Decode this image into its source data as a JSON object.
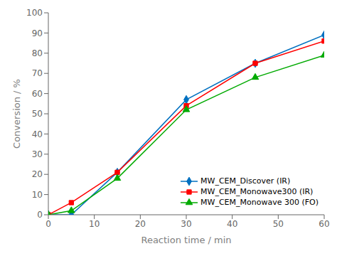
{
  "chart_data": {
    "type": "line",
    "x_label": "Reaction time / min",
    "y_label": "Conversion / %",
    "x": [
      0,
      5,
      15,
      30,
      45,
      60
    ],
    "series": [
      {
        "name": "MW_CEM_Discover (IR)",
        "color": "#0070c0",
        "marker": "diamond",
        "values": [
          0,
          0,
          21,
          57,
          75,
          89
        ]
      },
      {
        "name": "MW_CEM_Monowave300 (IR)",
        "color": "#ff0000",
        "marker": "square",
        "values": [
          0,
          6,
          21,
          54,
          75,
          86
        ]
      },
      {
        "name": "MW_CEM_Monowave 300 (FO)",
        "color": "#00aa00",
        "marker": "triangle",
        "values": [
          0,
          2,
          18,
          52,
          68,
          79
        ]
      }
    ],
    "xlim": [
      0,
      60
    ],
    "ylim": [
      0,
      100
    ],
    "xticks": [
      0,
      10,
      20,
      30,
      40,
      50,
      60
    ],
    "yticks": [
      0,
      10,
      20,
      30,
      40,
      50,
      60,
      70,
      80,
      90,
      100
    ],
    "grid": false,
    "legend": "lower right"
  }
}
